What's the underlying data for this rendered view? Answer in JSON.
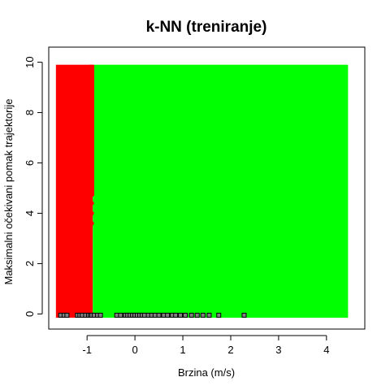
{
  "chart_data": {
    "type": "scatter",
    "title": "k-NN (treniranje)",
    "xlabel": "Brzina (m/s)",
    "ylabel": "Maksimalni očekivani pomak trajektorije",
    "xlim": [
      -1.8,
      4.8
    ],
    "ylim": [
      -0.6,
      10.6
    ],
    "x_ticks": [
      -1,
      0,
      1,
      2,
      3,
      4
    ],
    "y_ticks": [
      0,
      2,
      4,
      6,
      8,
      10
    ],
    "grid": false,
    "regions": [
      {
        "class": "red",
        "color": "#ff0000",
        "x_from": -1.65,
        "x_to": -0.88,
        "y_from": -0.15,
        "y_to": 9.9
      },
      {
        "class": "green",
        "color": "#00ff00",
        "x_from": -0.88,
        "x_to": 4.45,
        "y_from": -0.15,
        "y_to": 9.9
      }
    ],
    "boundary": {
      "x_low": -0.92,
      "x_high": -0.85,
      "zigzag_y": [
        3.4,
        3.6,
        3.8,
        4.0,
        4.2,
        4.4,
        4.6
      ],
      "zigzag_x": [
        -0.92,
        -0.85,
        -0.92,
        -0.85,
        -0.92,
        -0.85,
        -0.92
      ]
    },
    "points": {
      "y": -0.05,
      "x": [
        -1.55,
        -1.48,
        -1.42,
        -1.2,
        -1.15,
        -1.1,
        -1.03,
        -0.97,
        -0.93,
        -0.9,
        -0.85,
        -0.78,
        -0.72,
        -0.38,
        -0.3,
        -0.2,
        -0.15,
        -0.1,
        -0.05,
        0.0,
        0.05,
        0.1,
        0.15,
        0.2,
        0.28,
        0.35,
        0.42,
        0.5,
        0.6,
        0.68,
        0.78,
        0.85,
        0.95,
        1.05,
        1.18,
        1.3,
        1.42,
        1.55,
        1.75,
        2.28
      ],
      "color": "#808080"
    }
  }
}
